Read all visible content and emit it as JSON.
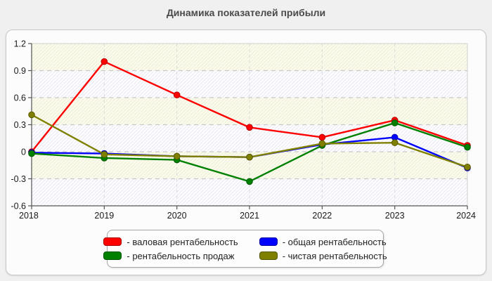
{
  "page": {
    "title": "Динамика показателей прибыли"
  },
  "chart_data": {
    "type": "line",
    "title": "Динамика показателей прибыли",
    "x": [
      2018,
      2019,
      2020,
      2021,
      2022,
      2023,
      2024
    ],
    "xticklabels": [
      "2018",
      "2019",
      "2020",
      "2021",
      "2022",
      "2023",
      "2024"
    ],
    "yticklabels": [
      "1.2",
      "0.9",
      "0.6",
      "0.3",
      "0",
      "-0.3",
      "-0.6"
    ],
    "ylim": [
      -0.6,
      1.2
    ],
    "ytick_step": 0.3,
    "grid": "dashed",
    "plot_background": "alternating hatched bands",
    "legend_position": "bottom",
    "series": [
      {
        "name": "валовая рентабельность",
        "color": "#ff0000",
        "values": [
          0.0,
          1.0,
          0.63,
          0.27,
          0.16,
          0.35,
          0.07
        ]
      },
      {
        "name": "общая рентабельность",
        "color": "#0000ff",
        "values": [
          -0.01,
          -0.02,
          -0.05,
          -0.06,
          0.08,
          0.16,
          -0.18
        ]
      },
      {
        "name": "рентабельность продаж",
        "color": "#008000",
        "values": [
          -0.02,
          -0.07,
          -0.09,
          -0.33,
          0.07,
          0.32,
          0.05
        ]
      },
      {
        "name": "чистая рентабельность",
        "color": "#808000",
        "values": [
          0.41,
          -0.03,
          -0.05,
          -0.06,
          0.09,
          0.1,
          -0.17
        ]
      }
    ]
  },
  "legend": {
    "items": [
      {
        "label": "- валовая рентабельность",
        "color": "#ff0000"
      },
      {
        "label": "- рентабельность продаж",
        "color": "#008000"
      },
      {
        "label": "- общая рентабельность",
        "color": "#0000ff"
      },
      {
        "label": "- чистая рентабельность",
        "color": "#808000"
      }
    ]
  },
  "colors": {
    "page_background": "#f0f0f0",
    "panel_background": "#fcfcfc",
    "band_cream": "#fbfbec",
    "band_blue": "#fdfdff",
    "gridline": "#c9c9c9",
    "axis": "#555555",
    "title_text": "#4a4a4a",
    "tick_text": "#1a1a1a"
  }
}
